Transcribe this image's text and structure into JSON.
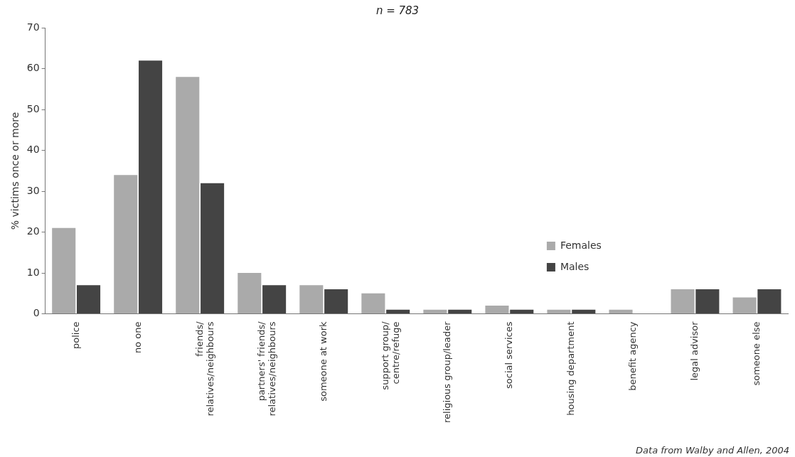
{
  "chart_data": {
    "type": "bar",
    "title": "n = 783",
    "ylabel": "% victims once or more",
    "categories": [
      "police",
      "no one",
      "friends/ relatives/neighbours",
      "partners' friends/ relatives/neighbours",
      "someone at work",
      "support group/ centre/refuge",
      "religious group/leader",
      "social services",
      "housing department",
      "benefit agency",
      "legal advisor",
      "someone else"
    ],
    "series": [
      {
        "name": "Females",
        "color": "#aaaaaa",
        "values": [
          21,
          34,
          58,
          10,
          7,
          5,
          1,
          2,
          1,
          1,
          6,
          4
        ]
      },
      {
        "name": "Males",
        "color": "#444444",
        "values": [
          7,
          62,
          32,
          7,
          6,
          1,
          1,
          1,
          1,
          0,
          6,
          6
        ]
      }
    ],
    "ylim": [
      0,
      70
    ],
    "yticks": [
      0,
      10,
      20,
      30,
      40,
      50,
      60,
      70
    ],
    "grid": false,
    "legend": "right",
    "annotations": [
      "Data from Walby and Allen, 2004"
    ]
  }
}
